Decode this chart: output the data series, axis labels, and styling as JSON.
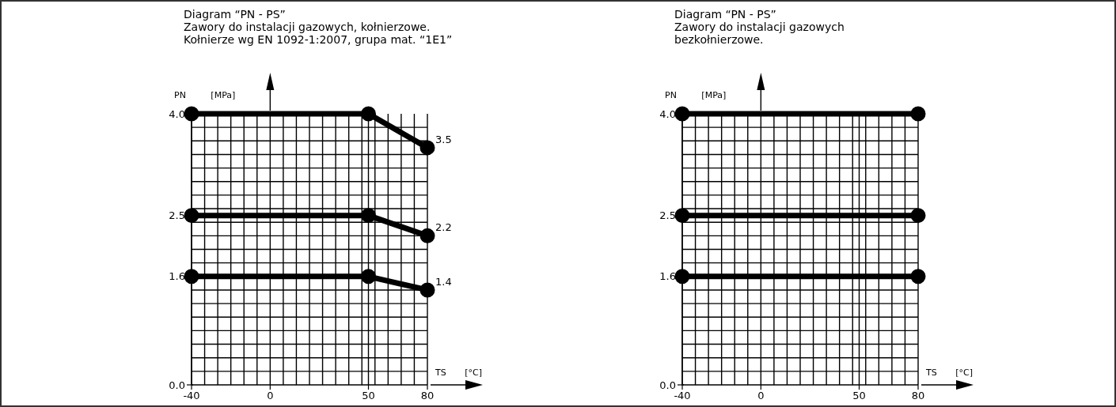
{
  "chart_data": [
    {
      "type": "line",
      "title": "Diagram “PN - PS”",
      "subtitle": "Zawory do instalacji gazowych, kołnierzowe.\nKołnierze wg EN 1092-1:2007, grupa mat. “1E1”",
      "xlabel": "TS [°C]",
      "ylabel": "PN [MPa]",
      "series": [
        {
          "color": "#000000",
          "x": [
            -40,
            50,
            80
          ],
          "values": [
            4.0,
            4.0,
            3.5
          ],
          "value_labels": [
            null,
            null,
            "3.5"
          ]
        },
        {
          "color": "#000000",
          "x": [
            -40,
            50,
            80
          ],
          "values": [
            2.5,
            2.5,
            2.2
          ],
          "value_labels": [
            null,
            null,
            "2.2"
          ]
        },
        {
          "color": "#000000",
          "x": [
            -40,
            50,
            80
          ],
          "values": [
            1.6,
            1.6,
            1.4
          ],
          "value_labels": [
            null,
            null,
            "1.4"
          ]
        }
      ],
      "xlim": [
        -40,
        80
      ],
      "xticks": [
        {
          "value": -40,
          "label": "-40"
        },
        {
          "value": -33.33,
          "label": null
        },
        {
          "value": -26.67,
          "label": null
        },
        {
          "value": -20,
          "label": null
        },
        {
          "value": -13.33,
          "label": null
        },
        {
          "value": -6.67,
          "label": null
        },
        0,
        {
          "value": 6.67,
          "label": null
        },
        {
          "value": 13.33,
          "label": null
        },
        {
          "value": 20,
          "label": null
        },
        {
          "value": 26.67,
          "label": null
        },
        {
          "value": 33.33,
          "label": null
        },
        {
          "value": 40,
          "label": null
        },
        {
          "value": 46.67,
          "label": null
        },
        50,
        {
          "value": 53.33,
          "label": null
        },
        {
          "value": 60,
          "label": null
        },
        {
          "value": 66.67,
          "label": null
        },
        {
          "value": 73.33,
          "label": null
        },
        80
      ],
      "ylim": [
        0,
        4.0
      ],
      "yticks": [
        {
          "value": 0,
          "label": "0.0"
        },
        {
          "value": 0.2,
          "label": null
        },
        {
          "value": 0.4,
          "label": null
        },
        {
          "value": 0.6,
          "label": null
        },
        {
          "value": 0.8,
          "label": null
        },
        {
          "value": 1.0,
          "label": null
        },
        {
          "value": 1.2,
          "label": null
        },
        {
          "value": 1.4,
          "label": null
        },
        {
          "value": 1.6,
          "label": "1.6"
        },
        {
          "value": 1.8,
          "label": null
        },
        {
          "value": 2.0,
          "label": null
        },
        {
          "value": 2.2,
          "label": null
        },
        {
          "value": 2.4,
          "label": null
        },
        {
          "value": 2.5,
          "label": "2.5"
        },
        {
          "value": 2.6,
          "label": null
        },
        {
          "value": 2.8,
          "label": null
        },
        {
          "value": 3.0,
          "label": null
        },
        {
          "value": 3.2,
          "label": null
        },
        {
          "value": 3.4,
          "label": null
        },
        {
          "value": 3.6,
          "label": null
        },
        {
          "value": 3.8,
          "label": null
        },
        {
          "value": 4.0,
          "label": "4.0"
        }
      ],
      "grid": true,
      "marker": "circle",
      "line_style": "solid"
    },
    {
      "type": "line",
      "title": "Diagram “PN - PS”",
      "subtitle": "Zawory do instalacji gazowych\nbezkołnierzowe.",
      "xlabel": "TS [°C]",
      "ylabel": "PN [MPa]",
      "series": [
        {
          "color": "#000000",
          "x": [
            -40,
            80
          ],
          "values": [
            4.0,
            4.0
          ]
        },
        {
          "color": "#000000",
          "x": [
            -40,
            80
          ],
          "values": [
            2.5,
            2.5
          ]
        },
        {
          "color": "#000000",
          "x": [
            -40,
            80
          ],
          "values": [
            1.6,
            1.6
          ]
        }
      ],
      "xlim": [
        -40,
        80
      ],
      "xticks": [
        {
          "value": -40,
          "label": "-40"
        },
        {
          "value": -33.33,
          "label": null
        },
        {
          "value": -26.67,
          "label": null
        },
        {
          "value": -20,
          "label": null
        },
        {
          "value": -13.33,
          "label": null
        },
        {
          "value": -6.67,
          "label": null
        },
        0,
        {
          "value": 6.67,
          "label": null
        },
        {
          "value": 13.33,
          "label": null
        },
        {
          "value": 20,
          "label": null
        },
        {
          "value": 26.67,
          "label": null
        },
        {
          "value": 33.33,
          "label": null
        },
        {
          "value": 40,
          "label": null
        },
        {
          "value": 46.67,
          "label": null
        },
        50,
        {
          "value": 53.33,
          "label": null
        },
        {
          "value": 60,
          "label": null
        },
        {
          "value": 66.67,
          "label": null
        },
        {
          "value": 73.33,
          "label": null
        },
        80
      ],
      "ylim": [
        0,
        4.0
      ],
      "yticks": [
        {
          "value": 0,
          "label": "0.0"
        },
        {
          "value": 0.2,
          "label": null
        },
        {
          "value": 0.4,
          "label": null
        },
        {
          "value": 0.6,
          "label": null
        },
        {
          "value": 0.8,
          "label": null
        },
        {
          "value": 1.0,
          "label": null
        },
        {
          "value": 1.2,
          "label": null
        },
        {
          "value": 1.4,
          "label": null
        },
        1.6,
        {
          "value": 1.8,
          "label": null
        },
        {
          "value": 2.0,
          "label": null
        },
        {
          "value": 2.2,
          "label": null
        },
        {
          "value": 2.4,
          "label": null
        },
        2.5,
        {
          "value": 2.6,
          "label": null
        },
        {
          "value": 2.8,
          "label": null
        },
        {
          "value": 3.0,
          "label": null
        },
        {
          "value": 3.2,
          "label": null
        },
        {
          "value": 3.4,
          "label": null
        },
        {
          "value": 3.6,
          "label": null
        },
        {
          "value": 3.8,
          "label": null
        },
        {
          "value": 4.0,
          "label": "4.0"
        }
      ],
      "grid": true,
      "marker": "circle",
      "line_style": "solid"
    }
  ]
}
